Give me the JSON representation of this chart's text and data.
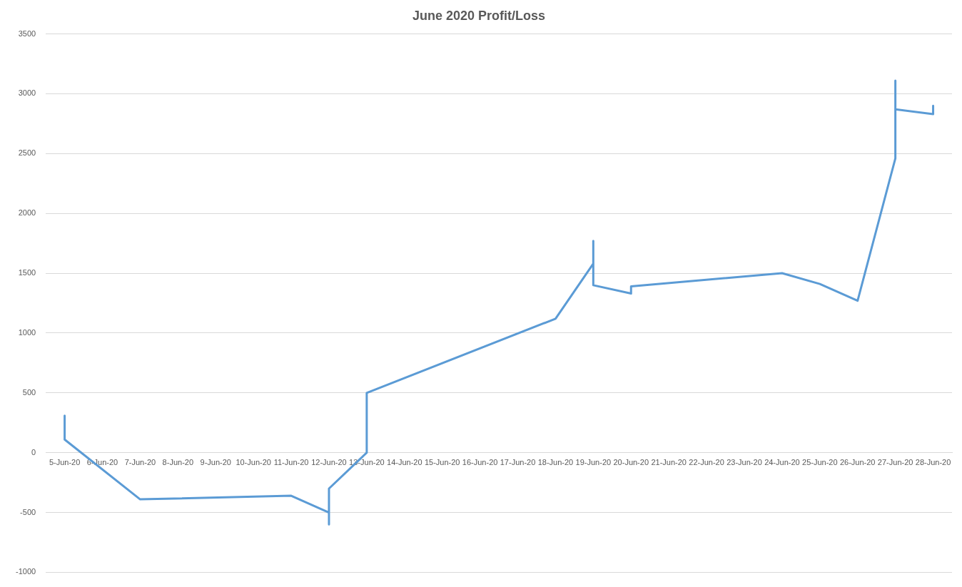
{
  "chart_data": {
    "type": "line",
    "title": "June 2020 Profit/Loss",
    "x": [
      "2020-06-05",
      "2020-06-05",
      "2020-06-07",
      "2020-06-11",
      "2020-06-12",
      "2020-06-12",
      "2020-06-12",
      "2020-06-13",
      "2020-06-13",
      "2020-06-18",
      "2020-06-19",
      "2020-06-19",
      "2020-06-19",
      "2020-06-20",
      "2020-06-20",
      "2020-06-24",
      "2020-06-25",
      "2020-06-26",
      "2020-06-27",
      "2020-06-27",
      "2020-06-27",
      "2020-06-28",
      "2020-06-28"
    ],
    "series": [
      {
        "color": "#5b9bd5",
        "values": [
          310,
          110,
          -390,
          -360,
          -500,
          -600,
          -300,
          0,
          500,
          1120,
          1580,
          1770,
          1400,
          1330,
          1390,
          1500,
          1410,
          1270,
          2460,
          3110,
          2870,
          2830,
          2900
        ]
      }
    ],
    "xlim": [
      "2020-06-04T12:00",
      "2020-06-28T12:00"
    ],
    "xticks": [
      {
        "value": "2020-06-05",
        "label": "5-Jun-20"
      },
      {
        "value": "2020-06-06",
        "label": "6-Jun-20"
      },
      {
        "value": "2020-06-07",
        "label": "7-Jun-20"
      },
      {
        "value": "2020-06-08",
        "label": "8-Jun-20"
      },
      {
        "value": "2020-06-09",
        "label": "9-Jun-20"
      },
      {
        "value": "2020-06-10",
        "label": "10-Jun-20"
      },
      {
        "value": "2020-06-11",
        "label": "11-Jun-20"
      },
      {
        "value": "2020-06-12",
        "label": "12-Jun-20"
      },
      {
        "value": "2020-06-13",
        "label": "13-Jun-20"
      },
      {
        "value": "2020-06-14",
        "label": "14-Jun-20"
      },
      {
        "value": "2020-06-15",
        "label": "15-Jun-20"
      },
      {
        "value": "2020-06-16",
        "label": "16-Jun-20"
      },
      {
        "value": "2020-06-17",
        "label": "17-Jun-20"
      },
      {
        "value": "2020-06-18",
        "label": "18-Jun-20"
      },
      {
        "value": "2020-06-19",
        "label": "19-Jun-20"
      },
      {
        "value": "2020-06-20",
        "label": "20-Jun-20"
      },
      {
        "value": "2020-06-21",
        "label": "21-Jun-20"
      },
      {
        "value": "2020-06-22",
        "label": "22-Jun-20"
      },
      {
        "value": "2020-06-23",
        "label": "23-Jun-20"
      },
      {
        "value": "2020-06-24",
        "label": "24-Jun-20"
      },
      {
        "value": "2020-06-25",
        "label": "25-Jun-20"
      },
      {
        "value": "2020-06-26",
        "label": "26-Jun-20"
      },
      {
        "value": "2020-06-27",
        "label": "27-Jun-20"
      },
      {
        "value": "2020-06-28",
        "label": "28-Jun-20"
      }
    ],
    "ylim": [
      -1000,
      3500
    ],
    "yticks": [
      -1000,
      -500,
      0,
      500,
      1000,
      1500,
      2000,
      2500,
      3000,
      3500
    ],
    "grid": "y",
    "legend": false,
    "marker": "none",
    "line_style": "solid"
  }
}
